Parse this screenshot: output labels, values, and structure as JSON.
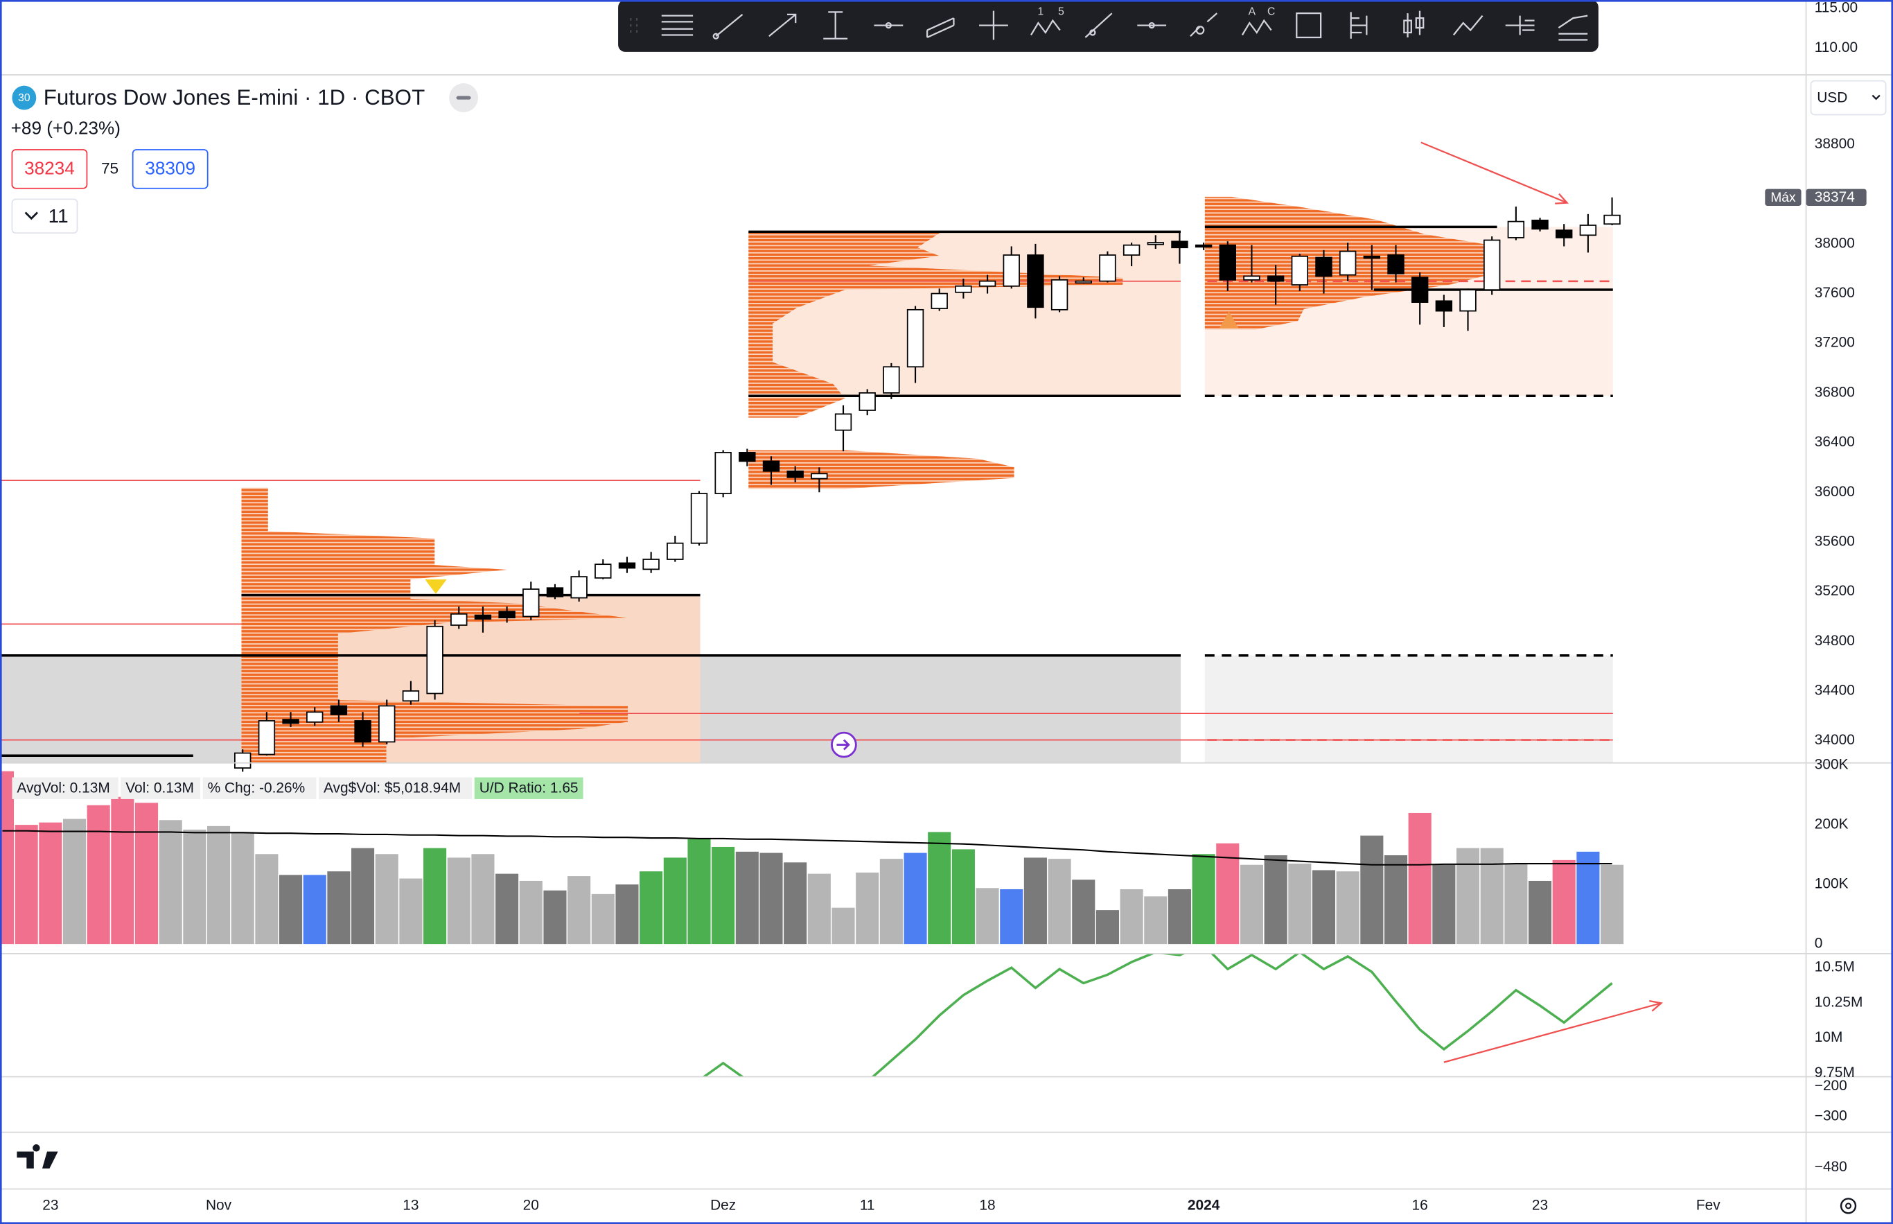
{
  "toolbar": {
    "labels": [
      "1",
      "5",
      "A",
      "C"
    ]
  },
  "header": {
    "symbol_badge": "30",
    "title": "Futuros Dow Jones E-mini · 1D · CBOT",
    "change": "+89 (+0.23%)",
    "bid": "38234",
    "spread": "75",
    "ask": "38309",
    "indicator_count": "11",
    "currency": "USD"
  },
  "x_axis": {
    "categories": [
      null,
      null,
      "23",
      null,
      null,
      null,
      null,
      null,
      null,
      "Nov",
      null,
      null,
      null,
      null,
      null,
      null,
      null,
      "13",
      null,
      null,
      null,
      null,
      "20",
      null,
      null,
      null,
      null,
      null,
      null,
      null,
      "Dez",
      null,
      null,
      null,
      null,
      null,
      "11",
      null,
      null,
      null,
      null,
      "18",
      null,
      null,
      null,
      null,
      null,
      null,
      null,
      null,
      "2024",
      null,
      null,
      null,
      null,
      null,
      null,
      null,
      null,
      "16",
      null,
      null,
      null,
      null,
      "23",
      null,
      null,
      null,
      null,
      null,
      null,
      "Fev",
      null,
      null
    ]
  },
  "chart_data": [
    {
      "type": "axis",
      "ylim": [
        106.67,
        116.06
      ],
      "yticks": [
        {
          "value": 115,
          "label": "115.00"
        },
        {
          "value": 110,
          "label": "110.00"
        }
      ]
    },
    {
      "type": "candlestick",
      "ylim": [
        33821,
        39361
      ],
      "yticks": [
        38800,
        38000,
        37600,
        37200,
        36800,
        36400,
        36000,
        35600,
        35200,
        34800,
        34400,
        34000
      ],
      "up_color": "#ffffff",
      "down_color": "#000000",
      "max_label": "Máx",
      "max_value": 38374,
      "open": [
        null,
        null,
        null,
        null,
        null,
        null,
        null,
        null,
        null,
        null,
        33780,
        33889,
        34170,
        34150,
        34280,
        34160,
        33990,
        34320,
        34380,
        34930,
        35010,
        35040,
        35000,
        35230,
        35150,
        35310,
        35430,
        35380,
        35460,
        35590,
        35990,
        36320,
        36250,
        36170,
        36110,
        36500,
        36660,
        36800,
        37010,
        37480,
        37610,
        37660,
        37660,
        37910,
        37470,
        37690,
        37700,
        37910,
        38000,
        38020,
        37990,
        37990,
        37710,
        37740,
        37670,
        37890,
        37750,
        37900,
        37910,
        37730,
        37540,
        37460,
        37630,
        38050,
        38190,
        38110,
        38070,
        38160,
        null,
        null,
        null,
        null,
        null,
        null
      ],
      "high": [
        null,
        null,
        null,
        null,
        null,
        null,
        null,
        null,
        null,
        null,
        33930,
        34230,
        34230,
        34270,
        34330,
        34230,
        34330,
        34480,
        34970,
        35080,
        35080,
        35080,
        35280,
        35260,
        35370,
        35460,
        35480,
        35520,
        35650,
        36010,
        36340,
        36350,
        36290,
        36210,
        36200,
        36700,
        36830,
        37040,
        37500,
        37640,
        37720,
        37750,
        37980,
        38000,
        37740,
        37730,
        37940,
        38010,
        38070,
        38100,
        38010,
        38020,
        37990,
        37830,
        37920,
        37950,
        38010,
        37990,
        37990,
        37770,
        37590,
        37640,
        38060,
        38300,
        38210,
        38160,
        38240,
        38374,
        null,
        null,
        null,
        null,
        null,
        null
      ],
      "low": [
        null,
        null,
        null,
        null,
        null,
        null,
        null,
        null,
        null,
        null,
        33750,
        33880,
        34110,
        34120,
        34150,
        33950,
        33970,
        34290,
        34330,
        34900,
        34870,
        34950,
        34970,
        35140,
        35120,
        35300,
        35350,
        35350,
        35440,
        35570,
        35960,
        36210,
        36060,
        36080,
        36000,
        36330,
        36620,
        36750,
        36880,
        37460,
        37560,
        37600,
        37640,
        37400,
        37450,
        37680,
        37690,
        37820,
        37960,
        37840,
        37950,
        37620,
        37690,
        37510,
        37620,
        37600,
        37700,
        37630,
        37690,
        37350,
        37330,
        37300,
        37590,
        38030,
        38100,
        37980,
        37930,
        38150,
        null,
        null,
        null,
        null,
        null,
        null
      ],
      "close": [
        null,
        null,
        null,
        null,
        null,
        null,
        null,
        null,
        null,
        null,
        33900,
        34160,
        34140,
        34230,
        34210,
        33990,
        34280,
        34400,
        34920,
        35020,
        34980,
        34990,
        35220,
        35160,
        35320,
        35420,
        35390,
        35460,
        35590,
        35990,
        36320,
        36250,
        36170,
        36120,
        36150,
        36630,
        36800,
        37010,
        37470,
        37600,
        37660,
        37700,
        37910,
        37490,
        37710,
        37700,
        37910,
        37990,
        38010,
        37970,
        37980,
        37710,
        37740,
        37700,
        37900,
        37740,
        37940,
        37890,
        37760,
        37530,
        37460,
        37630,
        38030,
        38180,
        38120,
        38050,
        38150,
        38230,
        null,
        null,
        null,
        null,
        null,
        null
      ]
    },
    {
      "type": "bar",
      "ylim": [
        -16000,
        304000
      ],
      "yticks": [
        {
          "value": 300000,
          "label": "300K"
        },
        {
          "value": 200000,
          "label": "200K"
        },
        {
          "value": 100000,
          "label": "100K"
        },
        0
      ],
      "legend": [
        "AvgVol: 0.13M",
        "Vol: 0.13M",
        "% Chg: -0.26%",
        "Avg$Vol: $5,018.94M",
        "U/D Ratio: 1.65"
      ],
      "values": [
        290000,
        200000,
        204000,
        210000,
        233000,
        247000,
        237000,
        208000,
        192000,
        198000,
        188000,
        151000,
        116000,
        116000,
        122000,
        161000,
        151000,
        110000,
        161000,
        145000,
        151000,
        118000,
        106000,
        90000,
        114000,
        84000,
        100000,
        122000,
        145000,
        176000,
        163000,
        155000,
        153000,
        137000,
        118000,
        61000,
        120000,
        143000,
        153000,
        188000,
        159000,
        94000,
        92000,
        145000,
        143000,
        108000,
        57000,
        92000,
        80000,
        92000,
        151000,
        169000,
        133000,
        149000,
        135000,
        124000,
        122000,
        182000,
        149000,
        220000,
        133000,
        161000,
        161000,
        135000,
        106000,
        141000,
        155000,
        133000,
        null,
        null,
        null,
        null,
        null,
        null
      ],
      "colors": [
        "#f0708e",
        "#f0708e",
        "#f0708e",
        "#b5b5b5",
        "#f0708e",
        "#f0708e",
        "#f0708e",
        "#b5b5b5",
        "#b5b5b5",
        "#b5b5b5",
        "#b5b5b5",
        "#b5b5b5",
        "#7a7a7a",
        "#4d7ff3",
        "#7a7a7a",
        "#7a7a7a",
        "#b5b5b5",
        "#b5b5b5",
        "#4caf50",
        "#b5b5b5",
        "#b5b5b5",
        "#7a7a7a",
        "#b5b5b5",
        "#7a7a7a",
        "#b5b5b5",
        "#b5b5b5",
        "#7a7a7a",
        "#4caf50",
        "#4caf50",
        "#4caf50",
        "#4caf50",
        "#7a7a7a",
        "#7a7a7a",
        "#7a7a7a",
        "#b5b5b5",
        "#b5b5b5",
        "#b5b5b5",
        "#b5b5b5",
        "#4d7ff3",
        "#4caf50",
        "#4caf50",
        "#b5b5b5",
        "#4d7ff3",
        "#7a7a7a",
        "#b5b5b5",
        "#7a7a7a",
        "#7a7a7a",
        "#b5b5b5",
        "#b5b5b5",
        "#7a7a7a",
        "#4caf50",
        "#f0708e",
        "#b5b5b5",
        "#7a7a7a",
        "#b5b5b5",
        "#7a7a7a",
        "#b5b5b5",
        "#7a7a7a",
        "#7a7a7a",
        "#f0708e",
        "#7a7a7a",
        "#b5b5b5",
        "#b5b5b5",
        "#b5b5b5",
        "#7a7a7a",
        "#f0708e",
        "#4d7ff3",
        "#b5b5b5",
        null,
        null,
        null,
        null,
        null,
        null
      ],
      "average": {
        "color": "#000000",
        "values": [
          190000,
          190000,
          189000,
          189000,
          189000,
          188000,
          188000,
          188000,
          187000,
          187000,
          187000,
          186000,
          186000,
          185000,
          185000,
          184000,
          184000,
          183000,
          183000,
          182000,
          182000,
          181000,
          181000,
          180000,
          180000,
          179000,
          179000,
          178000,
          178000,
          177000,
          177000,
          176000,
          176000,
          175000,
          174000,
          173000,
          172000,
          171000,
          170000,
          169000,
          168000,
          166000,
          164000,
          162000,
          160000,
          158000,
          155000,
          153000,
          151000,
          149000,
          147000,
          145000,
          143000,
          141000,
          139000,
          137000,
          135000,
          133000,
          133000,
          133000,
          134000,
          134000,
          134000,
          135000,
          135000,
          135000,
          135000,
          135000,
          null,
          null,
          null,
          null,
          null,
          null
        ]
      }
    },
    {
      "type": "line",
      "ylim": [
        9725000,
        10600000
      ],
      "yticks": [
        {
          "value": 10500000,
          "label": "10.5M"
        },
        {
          "value": 10250000,
          "label": "10.25M"
        },
        {
          "value": 10000000,
          "label": "10M"
        },
        {
          "value": 9750000,
          "label": "9.75M"
        }
      ],
      "color": "#4caf50",
      "values": [
        null,
        null,
        null,
        null,
        null,
        null,
        null,
        null,
        null,
        null,
        null,
        null,
        null,
        null,
        null,
        null,
        null,
        null,
        null,
        null,
        null,
        null,
        null,
        null,
        null,
        null,
        null,
        null,
        null,
        9700000,
        9822000,
        9700000,
        null,
        null,
        null,
        null,
        9690000,
        9840000,
        9990000,
        10160000,
        10305000,
        10407000,
        10500000,
        10356000,
        10490000,
        10390000,
        10450000,
        10540000,
        10610000,
        10590000,
        10660000,
        10490000,
        10590000,
        10490000,
        10610000,
        10490000,
        10580000,
        10470000,
        10260000,
        10060000,
        9920000,
        10050000,
        10190000,
        10340000,
        10230000,
        10110000,
        10250000,
        10390000,
        null,
        null,
        null,
        null,
        null,
        null
      ]
    },
    {
      "type": "axis",
      "ylim": [
        -353,
        -167
      ],
      "yticks": [
        {
          "value": -200,
          "label": "−200"
        },
        {
          "value": -300,
          "label": "−300"
        }
      ]
    },
    {
      "type": "axis",
      "ylim": [
        -517,
        -420
      ],
      "yticks": [
        {
          "value": -480,
          "label": "−480"
        }
      ]
    }
  ]
}
